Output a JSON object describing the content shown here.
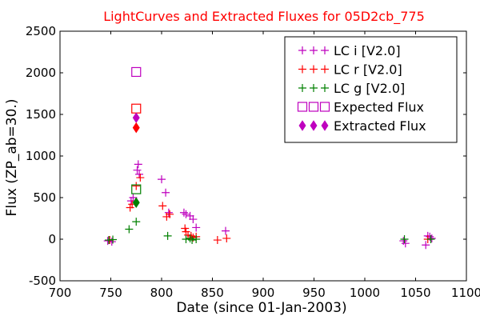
{
  "chart_data": {
    "type": "scatter",
    "title": "LightCurves and Extracted Fluxes for 05D2cb_775",
    "xlabel": "Date (since 01-Jan-2003)",
    "ylabel": "Flux (ZP_ab=30.)",
    "xlim": [
      700,
      1100
    ],
    "ylim": [
      -500,
      2500
    ],
    "xticks": [
      "700",
      "750",
      "800",
      "850",
      "900",
      "950",
      "1000",
      "1050",
      "1100"
    ],
    "yticks": [
      "-500",
      "0",
      "500",
      "1000",
      "1500",
      "2000",
      "2500"
    ],
    "grid": false,
    "legend_position": "top-right",
    "series": [
      {
        "name": "LC i [V2.0]",
        "marker": "plus",
        "color": "#bf00bf",
        "points": [
          [
            747,
            -20
          ],
          [
            751,
            -30
          ],
          [
            770,
            460
          ],
          [
            772,
            500
          ],
          [
            776,
            830
          ],
          [
            777,
            900
          ],
          [
            778,
            780
          ],
          [
            800,
            720
          ],
          [
            804,
            560
          ],
          [
            807,
            320
          ],
          [
            822,
            320
          ],
          [
            824,
            300
          ],
          [
            828,
            280
          ],
          [
            831,
            240
          ],
          [
            834,
            140
          ],
          [
            863,
            100
          ],
          [
            1038,
            -20
          ],
          [
            1040,
            -50
          ],
          [
            1060,
            -70
          ],
          [
            1062,
            40
          ],
          [
            1064,
            30
          ],
          [
            1066,
            10
          ]
        ]
      },
      {
        "name": "LC r [V2.0]",
        "marker": "plus",
        "color": "#ff0000",
        "points": [
          [
            749,
            -10
          ],
          [
            769,
            380
          ],
          [
            771,
            420
          ],
          [
            775,
            640
          ],
          [
            779,
            740
          ],
          [
            801,
            400
          ],
          [
            805,
            270
          ],
          [
            808,
            300
          ],
          [
            823,
            130
          ],
          [
            824,
            90
          ],
          [
            826,
            50
          ],
          [
            829,
            40
          ],
          [
            831,
            20
          ],
          [
            834,
            30
          ],
          [
            855,
            -10
          ],
          [
            864,
            10
          ],
          [
            1062,
            0
          ]
        ]
      },
      {
        "name": "LC g [V2.0]",
        "marker": "plus",
        "color": "#008000",
        "points": [
          [
            748,
            -10
          ],
          [
            752,
            -5
          ],
          [
            768,
            120
          ],
          [
            775,
            210
          ],
          [
            806,
            40
          ],
          [
            824,
            0
          ],
          [
            828,
            10
          ],
          [
            830,
            -10
          ],
          [
            834,
            0
          ],
          [
            1039,
            0
          ],
          [
            1065,
            0
          ]
        ]
      },
      {
        "name": "Expected Flux",
        "marker": "square",
        "color": "#bf00bf",
        "points": [
          [
            775,
            2010
          ],
          [
            775,
            1570
          ],
          [
            775,
            600
          ]
        ],
        "colors": [
          "#bf00bf",
          "#ff0000",
          "#008000"
        ]
      },
      {
        "name": "Extracted Flux",
        "marker": "diamond",
        "color": "#bf00bf",
        "points": [
          [
            775,
            1460
          ],
          [
            775,
            1340
          ],
          [
            775,
            440
          ]
        ],
        "colors": [
          "#bf00bf",
          "#ff0000",
          "#008000"
        ]
      }
    ]
  }
}
